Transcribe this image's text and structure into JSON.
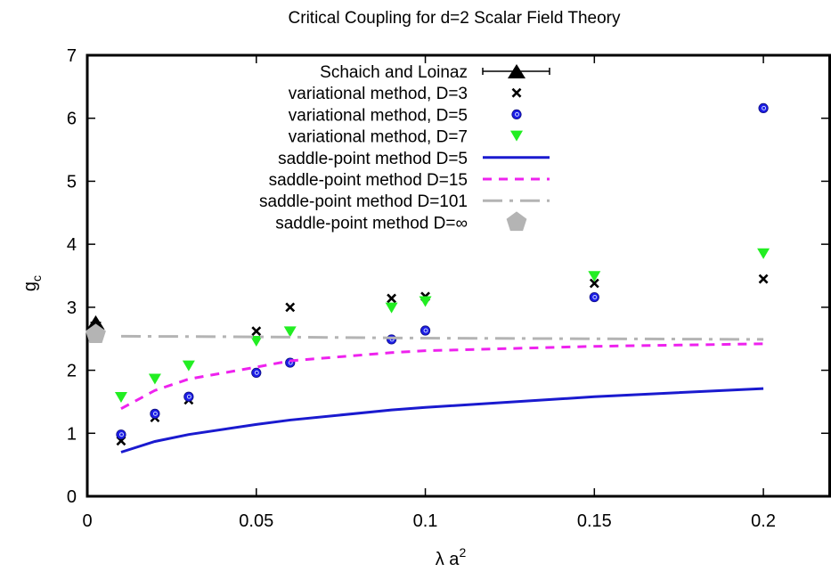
{
  "chart_data": {
    "type": "scatter",
    "title": "Critical Coupling for d=2 Scalar Field Theory",
    "xlabel": "λ a",
    "xlabel_sup": "2",
    "ylabel": "g",
    "ylabel_sub": "c",
    "xlim": [
      0,
      0.22
    ],
    "ylim": [
      0,
      7
    ],
    "x_ticks": [
      {
        "value": 0,
        "label": "0"
      },
      {
        "value": 0.05,
        "label": "0.05"
      },
      {
        "value": 0.1,
        "label": "0.1"
      },
      {
        "value": 0.15,
        "label": "0.15"
      },
      {
        "value": 0.2,
        "label": "0.2"
      }
    ],
    "y_ticks": [
      {
        "value": 0,
        "label": "0"
      },
      {
        "value": 1,
        "label": "1"
      },
      {
        "value": 2,
        "label": "2"
      },
      {
        "value": 3,
        "label": "3"
      },
      {
        "value": 4,
        "label": "4"
      },
      {
        "value": 5,
        "label": "5"
      },
      {
        "value": 6,
        "label": "6"
      },
      {
        "value": 7,
        "label": "7"
      }
    ],
    "grid": false,
    "legend_position": "top-center",
    "series": [
      {
        "name": "Schaich and Loinaz",
        "kind": "errorbar-triangle",
        "color": "#000000",
        "points": [
          {
            "x": 0.0025,
            "y": 2.76
          }
        ]
      },
      {
        "name": "variational method, D=3",
        "kind": "cross",
        "color": "#000000",
        "points": [
          {
            "x": 0.01,
            "y": 0.88
          },
          {
            "x": 0.02,
            "y": 1.25
          },
          {
            "x": 0.03,
            "y": 1.53
          },
          {
            "x": 0.05,
            "y": 2.62
          },
          {
            "x": 0.06,
            "y": 3.0
          },
          {
            "x": 0.09,
            "y": 3.14
          },
          {
            "x": 0.1,
            "y": 3.17
          },
          {
            "x": 0.15,
            "y": 3.38
          },
          {
            "x": 0.2,
            "y": 3.45
          }
        ]
      },
      {
        "name": "variational method, D=5",
        "kind": "circle",
        "color": "#1c1ce6",
        "points": [
          {
            "x": 0.01,
            "y": 0.98
          },
          {
            "x": 0.02,
            "y": 1.31
          },
          {
            "x": 0.03,
            "y": 1.58
          },
          {
            "x": 0.05,
            "y": 1.96
          },
          {
            "x": 0.06,
            "y": 2.12
          },
          {
            "x": 0.09,
            "y": 2.49
          },
          {
            "x": 0.1,
            "y": 2.63
          },
          {
            "x": 0.15,
            "y": 3.16
          },
          {
            "x": 0.2,
            "y": 6.16
          }
        ]
      },
      {
        "name": "variational method, D=7",
        "kind": "triangle-down",
        "color": "#22ee22",
        "points": [
          {
            "x": 0.01,
            "y": 1.57
          },
          {
            "x": 0.02,
            "y": 1.86
          },
          {
            "x": 0.03,
            "y": 2.07
          },
          {
            "x": 0.05,
            "y": 2.46
          },
          {
            "x": 0.06,
            "y": 2.61
          },
          {
            "x": 0.09,
            "y": 2.99
          },
          {
            "x": 0.1,
            "y": 3.09
          },
          {
            "x": 0.15,
            "y": 3.49
          },
          {
            "x": 0.2,
            "y": 3.85
          }
        ]
      },
      {
        "name": "saddle-point method D=5",
        "kind": "line-solid",
        "color": "#1a1acf",
        "points": [
          {
            "x": 0.01,
            "y": 0.7
          },
          {
            "x": 0.02,
            "y": 0.87
          },
          {
            "x": 0.03,
            "y": 0.98
          },
          {
            "x": 0.05,
            "y": 1.14
          },
          {
            "x": 0.06,
            "y": 1.21
          },
          {
            "x": 0.09,
            "y": 1.37
          },
          {
            "x": 0.1,
            "y": 1.41
          },
          {
            "x": 0.15,
            "y": 1.58
          },
          {
            "x": 0.2,
            "y": 1.71
          }
        ]
      },
      {
        "name": "saddle-point method D=15",
        "kind": "line-dashed",
        "color": "#ee22ee",
        "points": [
          {
            "x": 0.01,
            "y": 1.39
          },
          {
            "x": 0.02,
            "y": 1.68
          },
          {
            "x": 0.03,
            "y": 1.86
          },
          {
            "x": 0.05,
            "y": 2.05
          },
          {
            "x": 0.06,
            "y": 2.15
          },
          {
            "x": 0.09,
            "y": 2.28
          },
          {
            "x": 0.1,
            "y": 2.31
          },
          {
            "x": 0.15,
            "y": 2.38
          },
          {
            "x": 0.2,
            "y": 2.42
          }
        ]
      },
      {
        "name": "saddle-point method D=101",
        "kind": "line-dashdot",
        "color": "#b4b4b4",
        "points": [
          {
            "x": 0.01,
            "y": 2.54
          },
          {
            "x": 0.05,
            "y": 2.53
          },
          {
            "x": 0.1,
            "y": 2.51
          },
          {
            "x": 0.15,
            "y": 2.5
          },
          {
            "x": 0.2,
            "y": 2.49
          }
        ]
      },
      {
        "name": "saddle-point method D=∞",
        "kind": "pentagon",
        "color": "#b4b4b4",
        "points": [
          {
            "x": 0.0025,
            "y": 2.57
          }
        ]
      }
    ]
  }
}
